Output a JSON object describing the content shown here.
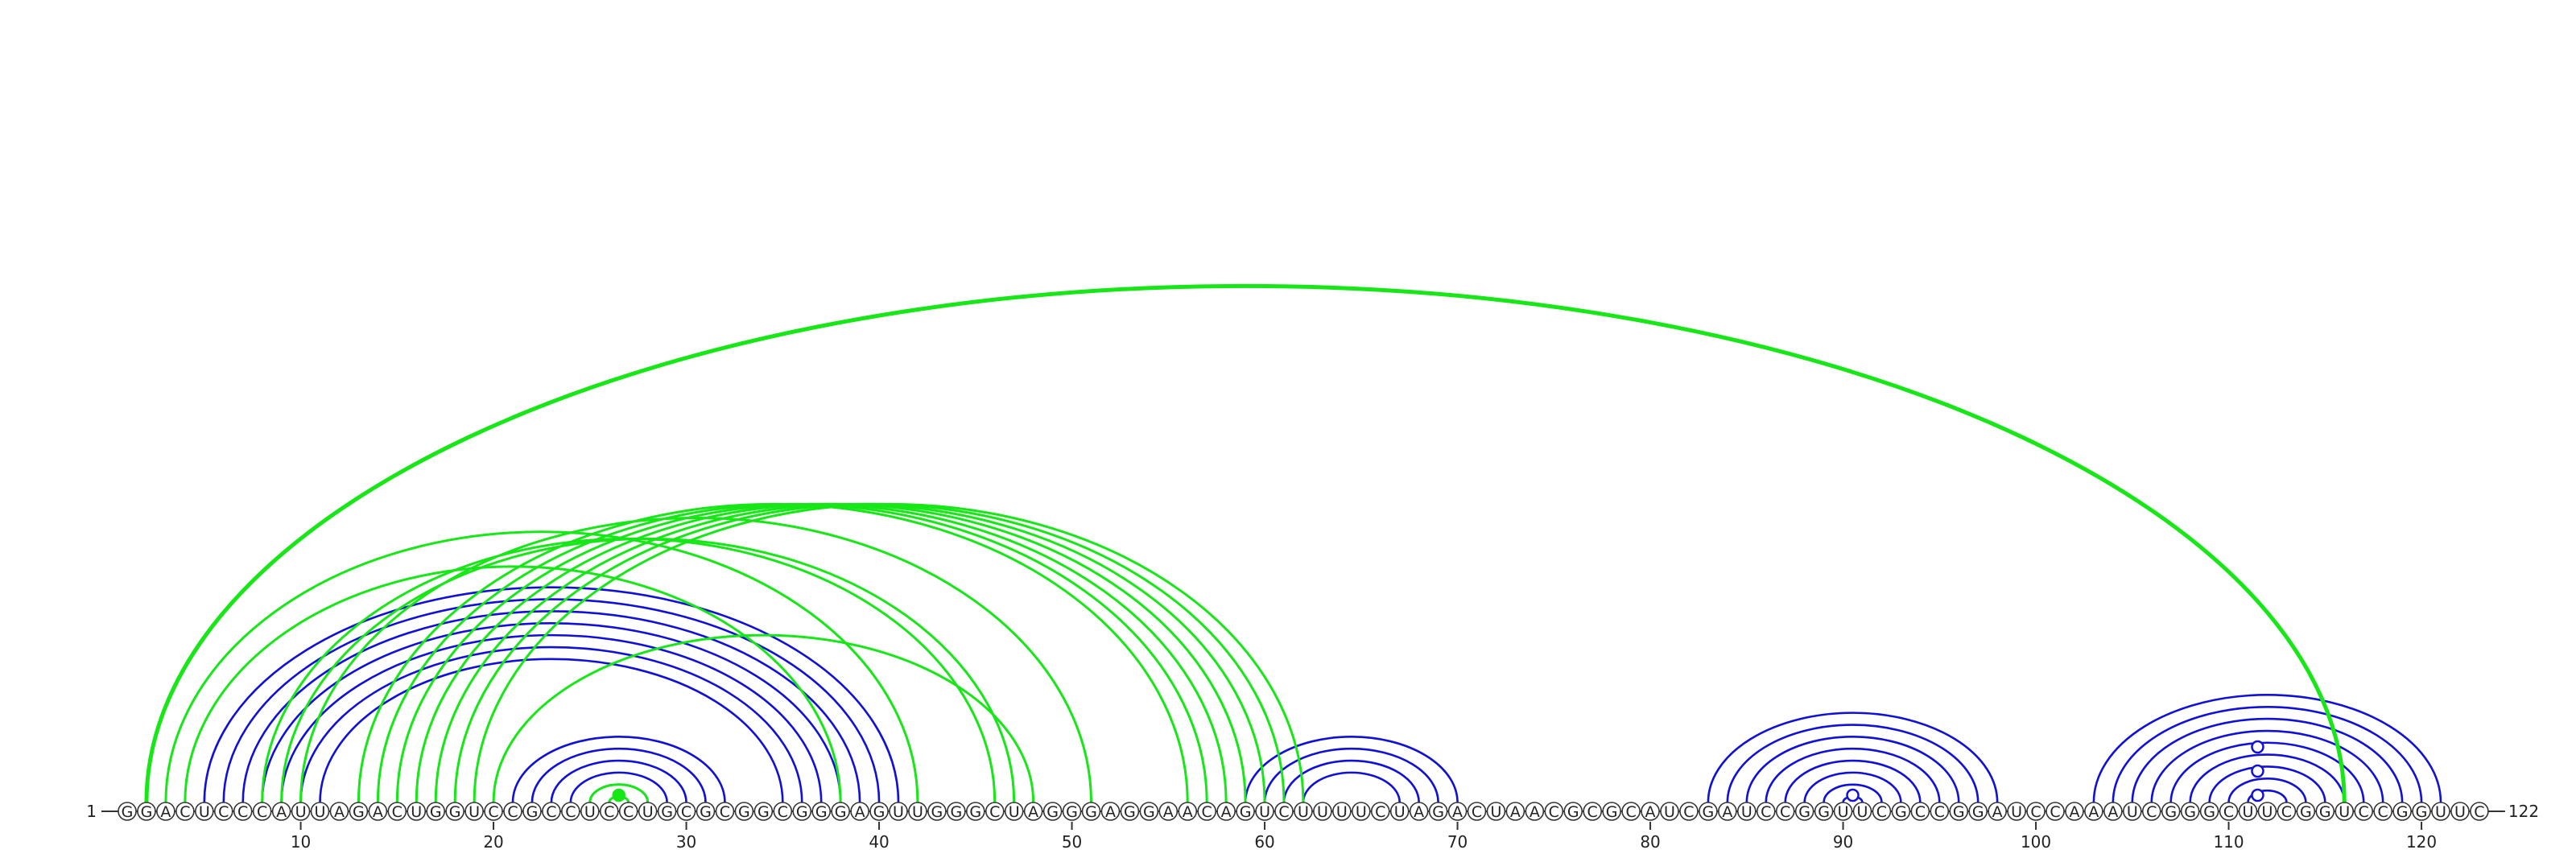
{
  "sequence": "GGACUCCCAUUAGACUGGUCCGCCUCCUGCGCGGCGGGAGUUGGGCUAGGGAGGAACAGUCUUUUCUAGACUAACGCGCAUCGAUCCGGUUCGCCGGAUCCAAAUCGGGCUUCGGUCCGGUUC",
  "start_label": "1",
  "end_label": "122",
  "tick_positions": [
    10,
    20,
    30,
    40,
    50,
    60,
    70,
    80,
    90,
    100,
    110,
    120
  ],
  "colors": {
    "structure_a": "#1010d8",
    "structure_b": "#17e617"
  },
  "blue_pairs": [
    [
      5,
      41
    ],
    [
      6,
      40
    ],
    [
      7,
      39
    ],
    [
      8,
      38
    ],
    [
      9,
      37
    ],
    [
      10,
      36
    ],
    [
      11,
      35
    ],
    [
      21,
      32
    ],
    [
      22,
      31
    ],
    [
      23,
      30
    ],
    [
      24,
      29
    ],
    [
      25,
      28
    ],
    [
      26,
      27
    ],
    [
      59,
      70
    ],
    [
      60,
      69
    ],
    [
      61,
      68
    ],
    [
      62,
      67
    ],
    [
      83,
      98
    ],
    [
      84,
      97
    ],
    [
      85,
      96
    ],
    [
      86,
      95
    ],
    [
      87,
      94
    ],
    [
      88,
      93
    ],
    [
      89,
      92
    ],
    [
      90,
      91
    ],
    [
      103,
      121
    ],
    [
      104,
      120
    ],
    [
      105,
      119
    ],
    [
      106,
      118
    ],
    [
      107,
      117
    ],
    [
      108,
      116
    ],
    [
      109,
      115
    ],
    [
      110,
      114
    ],
    [
      111,
      113
    ]
  ],
  "green_pairs": [
    [
      2,
      116
    ],
    [
      3,
      42
    ],
    [
      4,
      38
    ],
    [
      13,
      56
    ],
    [
      14,
      57
    ],
    [
      15,
      58
    ],
    [
      16,
      59
    ],
    [
      17,
      60
    ],
    [
      18,
      61
    ],
    [
      19,
      62
    ],
    [
      20,
      48
    ],
    [
      25,
      28
    ],
    [
      26,
      27
    ],
    [
      8,
      46
    ],
    [
      9,
      47
    ],
    [
      10,
      51
    ]
  ],
  "markers": [
    {
      "pos": 26.5,
      "color": "green",
      "filled": true
    },
    {
      "pos": 90.5,
      "color": "blue",
      "filled": false
    },
    {
      "pos": 111.5,
      "color": "blue",
      "filled": false
    },
    {
      "pos": 111.5,
      "color": "blue",
      "filled": false,
      "level": 2
    },
    {
      "pos": 111.5,
      "color": "blue",
      "filled": false,
      "level": 4
    }
  ]
}
